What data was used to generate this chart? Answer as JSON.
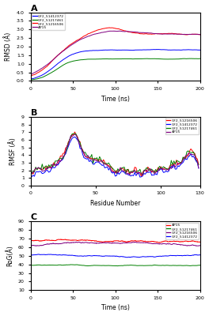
{
  "panel_A": {
    "title": "A",
    "xlabel": "Time (ns)",
    "ylabel": "RMSD (Å)",
    "xlim": [
      0,
      200
    ],
    "ylim": [
      0,
      4
    ],
    "yticks": [
      0,
      0.5,
      1.0,
      1.5,
      2.0,
      2.5,
      3.0,
      3.5,
      4.0
    ],
    "xticks": [
      0,
      50,
      100,
      150,
      200
    ],
    "legend": [
      "GF2_51412372",
      "GF2_51217461",
      "GF2_51216506",
      "AP15"
    ],
    "colors": [
      "blue",
      "green",
      "red",
      "purple"
    ]
  },
  "panel_B": {
    "title": "B",
    "xlabel": "Residue Number",
    "ylabel": "RMSF (Å)",
    "xlim": [
      0,
      130
    ],
    "ylim": [
      0,
      9
    ],
    "yticks": [
      0,
      1,
      2,
      3,
      4,
      5,
      6,
      7,
      8,
      9
    ],
    "xticks": [
      0,
      50,
      100,
      130
    ],
    "legend": [
      "GF2_51216506",
      "GF2_51412372",
      "GF2_51217461",
      "AP15"
    ],
    "colors": [
      "red",
      "blue",
      "green",
      "purple"
    ]
  },
  "panel_C": {
    "title": "C",
    "xlabel": "Time (ns)",
    "ylabel": "RoG(Å)",
    "xlim": [
      0,
      200
    ],
    "ylim": [
      10,
      90
    ],
    "yticks": [
      10,
      20,
      30,
      40,
      50,
      60,
      70,
      80,
      90
    ],
    "xticks": [
      0,
      50,
      100,
      150,
      200
    ],
    "legend": [
      "AP15",
      "GF2_51217461",
      "GF2_51216506",
      "GF2_51412372"
    ],
    "colors": [
      "red",
      "green",
      "purple",
      "blue"
    ]
  },
  "background": "#ffffff",
  "fig_width": 2.64,
  "fig_height": 4.0,
  "dpi": 100
}
